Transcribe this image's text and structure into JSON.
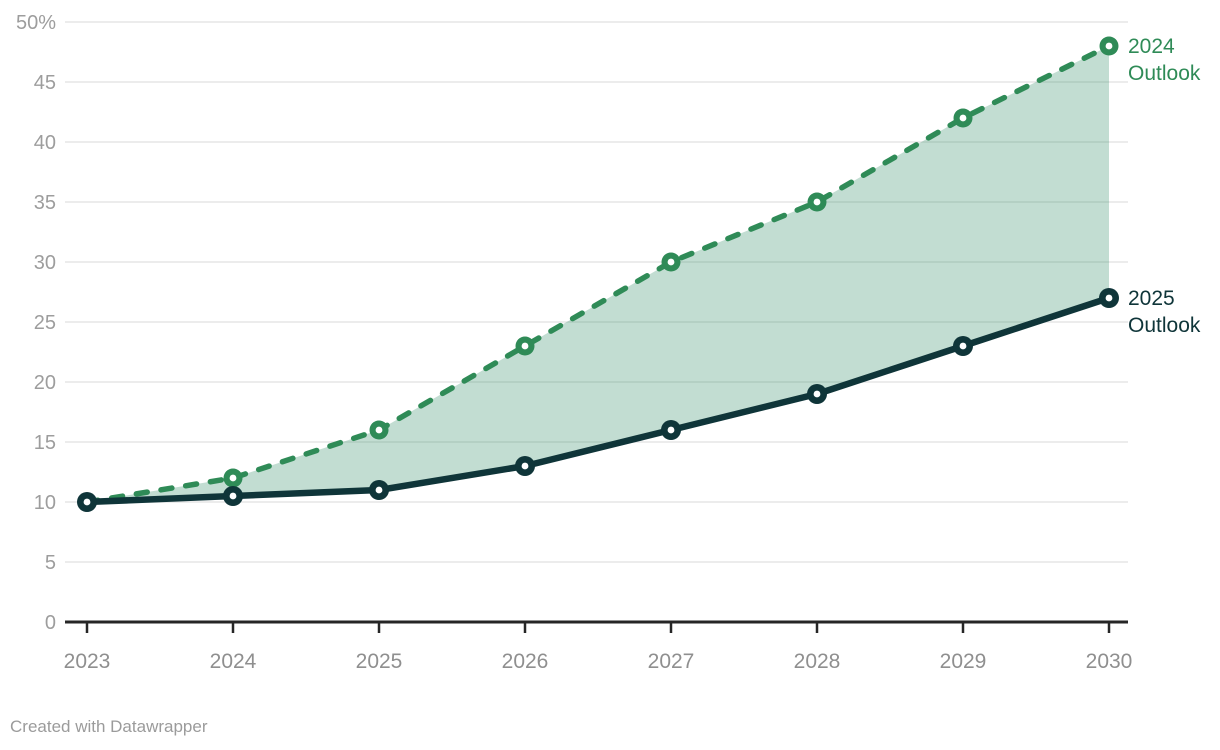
{
  "chart_data": {
    "type": "line",
    "title": "",
    "xlabel": "",
    "ylabel": "",
    "x": [
      2023,
      2024,
      2025,
      2026,
      2027,
      2028,
      2029,
      2030
    ],
    "xtick_labels": [
      "2023",
      "2024",
      "2025",
      "2026",
      "2027",
      "2028",
      "2029",
      "2030"
    ],
    "ylim": [
      0,
      50
    ],
    "ytick_step": 5,
    "ytick_labels": [
      "0",
      "5",
      "10",
      "15",
      "20",
      "25",
      "30",
      "35",
      "40",
      "45",
      "50%"
    ],
    "grid": "horizontal",
    "legend_position": "line-end-labels",
    "series": [
      {
        "name": "2024 Outlook",
        "label_lines": [
          "2024",
          "Outlook"
        ],
        "values": [
          10,
          12,
          16,
          23,
          30,
          35,
          42,
          48
        ],
        "color": "#2f8b57",
        "line_style": "dashed",
        "marker": "circle-dot"
      },
      {
        "name": "2025 Outlook",
        "label_lines": [
          "2025",
          "Outlook"
        ],
        "values": [
          10,
          10.5,
          11,
          13,
          16,
          19,
          23,
          27
        ],
        "color": "#0f3539",
        "line_style": "solid",
        "marker": "circle-dot"
      }
    ],
    "band_between_series": true,
    "band_color": "#35906b",
    "band_opacity": 0.3
  },
  "colors": {
    "gridline": "#e5e5e5",
    "axis_line": "#262626",
    "ytick_label": "#9d9d9d",
    "xtick_label": "#8f8f8f"
  },
  "footer": {
    "credit": "Created with Datawrapper"
  }
}
